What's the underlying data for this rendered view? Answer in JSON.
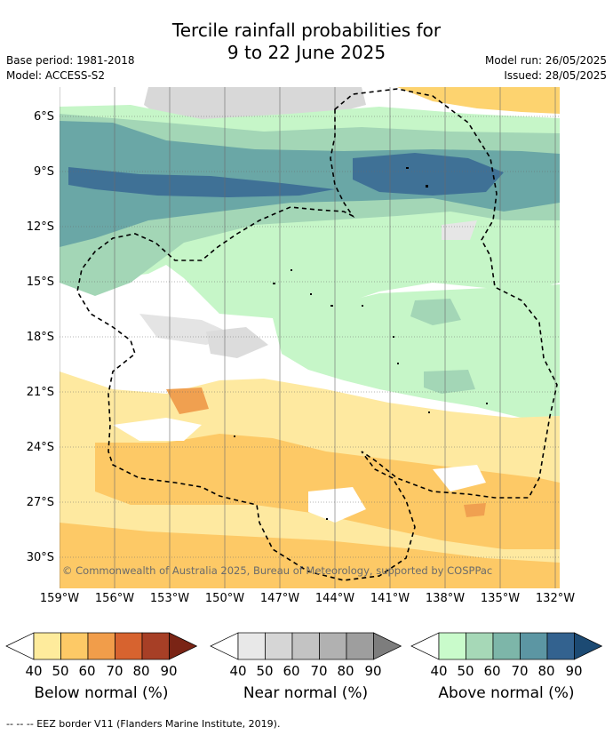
{
  "title_line1": "Tercile rainfall probabilities for",
  "title_line2": "9 to 22 June 2025",
  "base_period": "Base period: 1981-2018",
  "model": "Model: ACCESS-S2",
  "model_run": "Model run: 26/05/2025",
  "issued": "Issued: 28/05/2025",
  "copyright": "© Commonwealth of Australia 2025, Bureau of Meteorology, supported by COSPPac",
  "lat_labels": [
    "6°S",
    "9°S",
    "12°S",
    "15°S",
    "18°S",
    "21°S",
    "24°S",
    "27°S",
    "30°S"
  ],
  "lon_labels": [
    "159°W",
    "156°W",
    "153°W",
    "150°W",
    "147°W",
    "144°W",
    "141°W",
    "138°W",
    "135°W",
    "132°W"
  ],
  "legends": [
    {
      "name": "below",
      "title": "Below normal (%)",
      "ticks": [
        "40",
        "50",
        "60",
        "70",
        "80",
        "90"
      ],
      "colors": [
        "#ffffff",
        "#feeb9c",
        "#fdc966",
        "#f19d4a",
        "#d7632f",
        "#a73f26",
        "#7a2415"
      ]
    },
    {
      "name": "near",
      "title": "Near normal (%)",
      "ticks": [
        "40",
        "50",
        "60",
        "70",
        "80",
        "90"
      ],
      "colors": [
        "#ffffff",
        "#e8e8e8",
        "#d6d6d6",
        "#c3c3c3",
        "#b1b1b1",
        "#9e9e9e",
        "#7d7d7d"
      ]
    },
    {
      "name": "above",
      "title": "Above normal (%)",
      "ticks": [
        "40",
        "50",
        "60",
        "70",
        "80",
        "90"
      ],
      "colors": [
        "#ffffff",
        "#c9fbcb",
        "#a6d8b7",
        "#7db6a9",
        "#5c96a3",
        "#33628f",
        "#1c4a73"
      ]
    }
  ],
  "footer": "--  --  -- EEZ border V11 (Flanders Marine Institute, 2019)."
}
